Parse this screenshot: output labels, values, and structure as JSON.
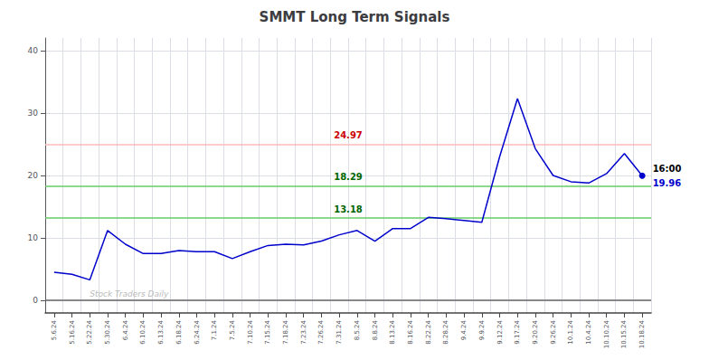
{
  "chart_data": {
    "type": "line",
    "title": "SMMT Long Term Signals",
    "categories": [
      "5.6.24",
      "5.16.24",
      "5.22.24",
      "5.30.24",
      "6.4.24",
      "6.10.24",
      "6.13.24",
      "6.18.24",
      "6.24.24",
      "7.1.24",
      "7.5.24",
      "7.10.24",
      "7.15.24",
      "7.18.24",
      "7.23.24",
      "7.26.24",
      "7.31.24",
      "8.5.24",
      "8.8.24",
      "8.13.24",
      "8.16.24",
      "8.22.24",
      "8.28.24",
      "9.4.24",
      "9.9.24",
      "9.12.24",
      "9.17.24",
      "9.20.24",
      "9.26.24",
      "10.1.24",
      "10.4.24",
      "10.10.24",
      "10.15.24",
      "10.18.24"
    ],
    "values": [
      4.5,
      4.2,
      3.3,
      11.2,
      9.0,
      7.5,
      7.5,
      8.0,
      7.8,
      7.8,
      6.7,
      7.8,
      8.8,
      9.0,
      8.9,
      9.5,
      10.5,
      11.2,
      9.5,
      11.5,
      11.5,
      13.3,
      13.1,
      12.8,
      12.5,
      23.0,
      32.3,
      24.3,
      20.0,
      19.0,
      18.8,
      20.3,
      23.5,
      19.96
    ],
    "color": "#0000cc",
    "ylim": [
      -2,
      42
    ],
    "yticks": [
      0,
      10,
      20,
      30,
      40
    ],
    "grid": true,
    "hlines": [
      {
        "value": 24.97,
        "label": "24.97",
        "color": "#ffbbbb",
        "label_color": "#cc0000"
      },
      {
        "value": 18.29,
        "label": "18.29",
        "color": "#66cc66",
        "label_color": "#006600"
      },
      {
        "value": 13.18,
        "label": "13.18",
        "color": "#66cc66",
        "label_color": "#006600"
      },
      {
        "value": 0,
        "color": "#666666"
      }
    ],
    "end_labels": [
      {
        "text": "16:00",
        "color": "#000000"
      },
      {
        "text": "19.96",
        "color": "#0000cc"
      }
    ],
    "watermark": {
      "text": "Stock Traders Daily",
      "color": "#bbbbbb"
    }
  }
}
